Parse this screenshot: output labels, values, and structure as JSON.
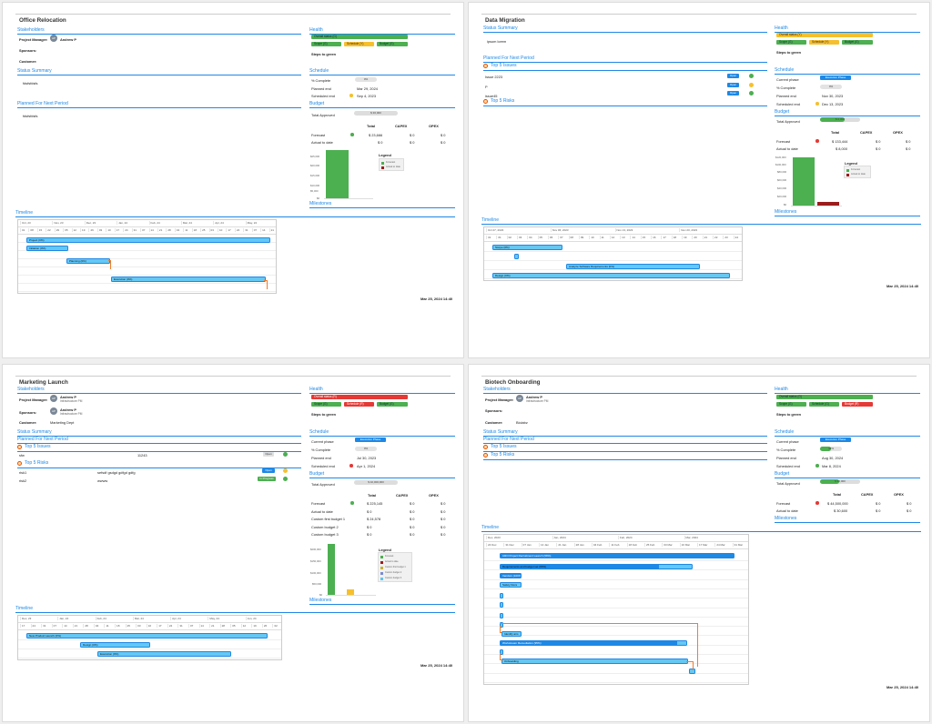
{
  "pages": [
    {
      "title": "Office Relocation",
      "stakeholders_heading": "Stakeholders",
      "pm_label": "Project Manager:",
      "pm_initials": "AP",
      "pm_name": "Andrew P",
      "sponsors_label": "Sponsors:",
      "customer_label": "Customer:",
      "status_summary_heading": "Status Summary",
      "status_summary_text": "fdsfsfdsfs",
      "planned_heading": "Planned For Next Period",
      "planned_text": "fdsfsfdsfs",
      "health_heading": "Health",
      "health_overall": "Overall status (G)",
      "health_scope": "Scope (G)",
      "health_schedule": "Schedule (Y)",
      "health_budget": "Budget (G)",
      "steps_to_green": "Steps to green",
      "schedule_heading": "Schedule",
      "pct_label": "% Complete",
      "pct_value": "0%",
      "planned_end_label": "Planned end",
      "planned_end": "Mar 29, 2024",
      "scheduled_end_label": "Scheduled end",
      "scheduled_end": "Sep 4, 2023",
      "budget_heading": "Budget",
      "total_approved_label": "Total Approved",
      "total_approved": "$ 30,000",
      "col_total": "Total",
      "col_capex": "CAPEX",
      "col_opex": "OPEX",
      "forecast_label": "Forecast",
      "forecast_total": "$ 23,666",
      "forecast_capex": "$ 0",
      "forecast_opex": "$ 0",
      "actual_label": "Actual to date",
      "actual_total": "$ 0",
      "actual_capex": "$ 0",
      "actual_opex": "$ 0",
      "y_ticks": [
        "$0",
        "$5,000",
        "$10,000",
        "$15,000",
        "$20,000",
        "$25,000"
      ],
      "legend_title": "Legend",
      "legend_items": [
        "Forecast",
        "Actual to date"
      ],
      "milestones_heading": "Milestones",
      "timeline_heading": "Timeline",
      "months": [
        "Oct, 23",
        "Nov, 23",
        "Dec, 23",
        "Jan, 24",
        "Feb, 24",
        "Mar, 24",
        "Apr, 24",
        "May, 24"
      ],
      "days": [
        "01",
        "08",
        "15",
        "22",
        "29",
        "05",
        "12",
        "19",
        "26",
        "03",
        "10",
        "17",
        "24",
        "31",
        "07",
        "14",
        "21",
        "28",
        "04",
        "11",
        "18",
        "25",
        "03",
        "10",
        "17",
        "24",
        "31",
        "07",
        "14",
        "21"
      ],
      "tasks": [
        "Project (0%)",
        "Initiation (0%)",
        "Planning (0%)",
        "Execution (0%)"
      ],
      "footer_ts": "Mar 25, 2024 14:40"
    },
    {
      "title": "Data Migration",
      "status_summary_heading": "Status Summary",
      "status_summary_text": "ipsum lorem",
      "planned_heading": "Planned For Next Period",
      "issues_heading": "Top 5 Issues",
      "issues": [
        {
          "name": "Issue 2223",
          "status": "Open"
        },
        {
          "name": "P",
          "status": "Open"
        },
        {
          "name": "issue45",
          "status": "Open"
        }
      ],
      "risks_heading": "Top 5 Risks",
      "health_heading": "Health",
      "health_overall": "Overall status (Y)",
      "health_scope": "Scope (G)",
      "health_schedule": "Schedule (Y)",
      "health_budget": "Budget (G)",
      "steps_to_green": "Steps to green",
      "schedule_heading": "Schedule",
      "phase_label": "Current phase",
      "phase_value": "Execution Phase",
      "pct_label": "% Complete",
      "pct_value": "0%",
      "planned_end_label": "Planned end",
      "planned_end": "Nov 30, 2023",
      "scheduled_end_label": "Scheduled end",
      "scheduled_end": "Dec 13, 2023",
      "budget_heading": "Budget",
      "total_approved_label": "Total Approved",
      "total_approved": "$ 0,000",
      "col_total": "Total",
      "col_capex": "CAPEX",
      "col_opex": "OPEX",
      "forecast_label": "Forecast",
      "forecast_total": "$ 133,444",
      "forecast_capex": "$ 0",
      "forecast_opex": "$ 0",
      "actual_label": "Actual to date",
      "actual_total": "$ 8,000",
      "actual_capex": "$ 0",
      "actual_opex": "$ 0",
      "y_ticks": [
        "$0",
        "$20,000",
        "$40,000",
        "$60,000",
        "$80,000",
        "$100,000",
        "$120,000"
      ],
      "legend_title": "Legend",
      "legend_items": [
        "Forecast",
        "Actual to date"
      ],
      "milestones_heading": "Milestones",
      "timeline_heading": "Timeline",
      "months": [
        "Oct 27, 2023",
        "Nov 06, 2023",
        "Nov 13, 2023",
        "Nov 20, 2023"
      ],
      "days": [
        "31",
        "01",
        "02",
        "03",
        "04",
        "05",
        "06",
        "07",
        "08",
        "09",
        "10",
        "11",
        "12",
        "13",
        "14",
        "15",
        "16",
        "17",
        "18",
        "19",
        "20",
        "21",
        "22",
        "23",
        "24"
      ],
      "tasks": [
        "Scope (0%)",
        "Analyze Software Requirements (0%)",
        "Design (0%)"
      ],
      "footer_ts": "Mar 25, 2024 14:40"
    },
    {
      "title": "Marketing Launch",
      "stakeholders_heading": "Stakeholders",
      "pm_label": "Project Manager:",
      "pm_initials": "AP",
      "pm_name": "Andrew P",
      "pm_org": "Infrastructure PM",
      "sponsors_label": "Sponsors:",
      "sponsor_initials": "AP",
      "sponsor_name": "Andrew P",
      "sponsor_org": "Infrastructure PM",
      "customer_label": "Customer:",
      "customer_value": "Marketing Dept",
      "status_summary_heading": "Status Summary",
      "planned_heading": "Planned For Next Period",
      "issues_heading": "Top 5 Issues",
      "issues": [
        {
          "name": "sfw",
          "ref": "11243",
          "status": "Open"
        }
      ],
      "risks_heading": "Top 5 Risks",
      "risks": [
        {
          "name": "risk1",
          "desc": "sefsdf gsdgd gdfgd gdfg",
          "status": "Open"
        },
        {
          "name": "risk2",
          "desc": "wwww",
          "status": "In Progress"
        }
      ],
      "health_heading": "Health",
      "health_overall": "Overall status (R)",
      "health_scope": "Scope (G)",
      "health_schedule": "Schedule (R)",
      "health_budget": "Budget (G)",
      "steps_to_green": "Steps to green",
      "schedule_heading": "Schedule",
      "phase_label": "Current phase",
      "phase_value": "Execution Phase",
      "pct_label": "% Complete",
      "pct_value": "0%",
      "planned_end_label": "Planned end",
      "planned_end": "Jul 30, 2023",
      "scheduled_end_label": "Scheduled end",
      "scheduled_end": "Apr 1, 2024",
      "budget_heading": "Budget",
      "total_approved_label": "Total Approved",
      "total_approved": "$ 10,000,000",
      "col_total": "Total",
      "col_capex": "CAPEX",
      "col_opex": "OPEX",
      "budget_rows": [
        {
          "label": "Forecast",
          "total": "$ 225,145",
          "capex": "$ 0",
          "opex": "$ 0"
        },
        {
          "label": "Actual to date",
          "total": "$ 0",
          "capex": "$ 0",
          "opex": "$ 0"
        },
        {
          "label": "Custom first budget 1",
          "total": "$ 24,578",
          "capex": "$ 0",
          "opex": "$ 0"
        },
        {
          "label": "Custom budget 2",
          "total": "$ 0",
          "capex": "$ 0",
          "opex": "$ 0"
        },
        {
          "label": "Custom budget 3",
          "total": "$ 0",
          "capex": "$ 0",
          "opex": "$ 0"
        }
      ],
      "y_ticks": [
        "$0",
        "$50,000",
        "$100,000",
        "$150,000",
        "$200,000"
      ],
      "legend_title": "Legend",
      "legend_items": [
        "Forecast",
        "Actual to date",
        "Custom first budget 1",
        "Custom budget 2",
        "Custom budget 3"
      ],
      "milestones_heading": "Milestones",
      "timeline_heading": "Timeline",
      "months": [
        "Dec, 23",
        "Jan, 24",
        "Feb, 24",
        "Mar, 24",
        "Apr, 24",
        "May, 24",
        "Jun, 24"
      ],
      "days": [
        "17",
        "24",
        "31",
        "07",
        "14",
        "21",
        "28",
        "04",
        "11",
        "18",
        "25",
        "03",
        "10",
        "17",
        "24",
        "31",
        "07",
        "14",
        "21",
        "28",
        "05",
        "12",
        "19",
        "26",
        "02"
      ],
      "tasks": [
        "New Product Launch (0%)",
        "Design (0%)",
        "Execution (0%)"
      ],
      "footer_ts": "Mar 25, 2024 14:40"
    },
    {
      "title": "Biotech Onboarding",
      "stakeholders_heading": "Stakeholders",
      "pm_label": "Project Manager:",
      "pm_initials": "AP",
      "pm_name": "Andrew P",
      "pm_org": "Infrastructure PM",
      "sponsors_label": "Sponsors:",
      "customer_label": "Customer:",
      "customer_value": "Biolabz",
      "status_summary_heading": "Status Summary",
      "planned_heading": "Planned For Next Period",
      "issues_heading": "Top 5 Issues",
      "risks_heading": "Top 5 Risks",
      "health_heading": "Health",
      "health_overall": "Overall status (G)",
      "health_scope": "Scope (G)",
      "health_schedule": "Schedule (G)",
      "health_budget": "Budget (R)",
      "steps_to_green": "Steps to green",
      "schedule_heading": "Schedule",
      "phase_label": "Current phase",
      "phase_value": "Execution Phase",
      "pct_label": "% Complete",
      "pct_value": "48%",
      "pct_num": 0.48,
      "planned_end_label": "Planned end",
      "planned_end": "Aug 30, 2024",
      "scheduled_end_label": "Scheduled end",
      "scheduled_end": "Mar 8, 2024",
      "budget_heading": "Budget",
      "total_approved_label": "Total Approved",
      "total_approved": "$ 90,000",
      "col_total": "Total",
      "col_capex": "CAPEX",
      "col_opex": "OPEX",
      "forecast_label": "Forecast",
      "forecast_total": "$ 44,500,000",
      "forecast_capex": "$ 0",
      "forecast_opex": "$ 0",
      "actual_label": "Actual to date",
      "actual_total": "$ 30,600",
      "actual_capex": "$ 0",
      "actual_opex": "$ 0",
      "milestones_heading": "Milestones",
      "timeline_heading": "Timeline",
      "months": [
        "Dec, 2023",
        "Jan, 2024",
        "Feb, 2024",
        "Mar, 2024"
      ],
      "days": [
        "24 Dec",
        "31 Dec",
        "07 Jan",
        "14 Jan",
        "21 Jan",
        "28 Jan",
        "04 Feb",
        "11 Feb",
        "18 Feb",
        "25 Feb",
        "03 Mar",
        "10 Mar",
        "17 Mar",
        "24 Mar",
        "31 Mar"
      ],
      "tasks": [
        "CRO Project Recruitment Launch (58%)",
        "Requirements and budget set (83%)",
        "Vendors (100%)",
        "Safety Docs",
        "Identify aim",
        "Workstream Remediation (95%)",
        "Onboarding"
      ],
      "footer_ts": "Mar 25, 2024 14:40"
    }
  ]
}
